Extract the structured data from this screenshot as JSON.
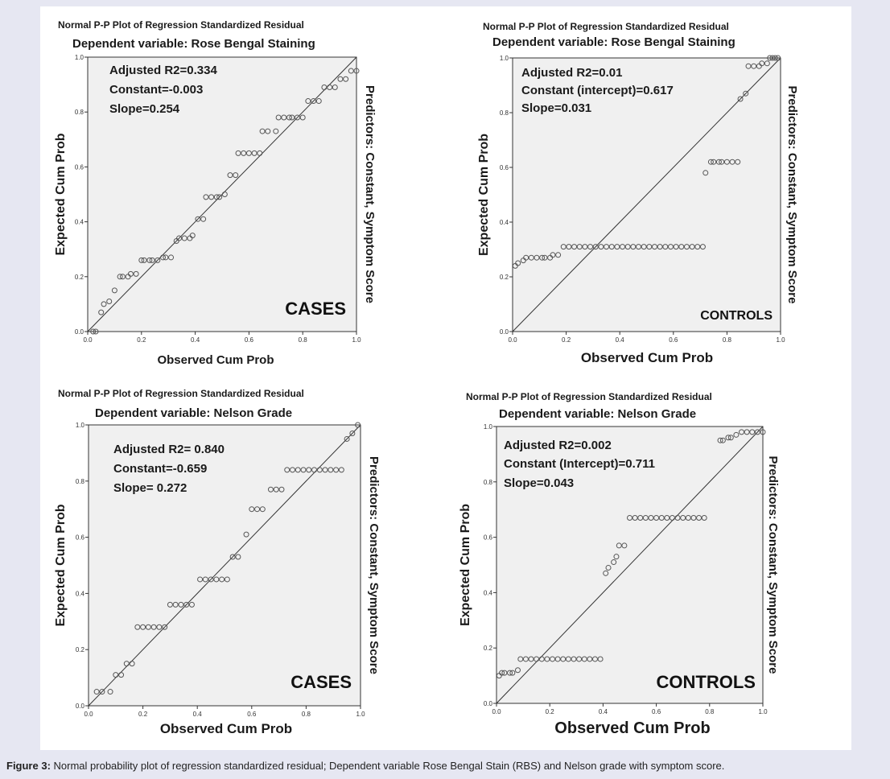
{
  "caption": {
    "label": "Figure 3:",
    "text": "Normal probability plot of regression standardized residual; Dependent variable Rose Bengal Stain (RBS) and Nelson grade with symptom score."
  },
  "colors": {
    "plot_background": "#f0f0f0",
    "page_background": "#e6e7f2",
    "marker": "#555555",
    "reference_line": "#333333"
  },
  "chart_data": [
    {
      "type": "scatter",
      "title": "Normal P-P Plot of Regression Standardized Residual",
      "subtitle": "Dependent variable: Rose Bengal Staining",
      "xlabel": "Observed Cum Prob",
      "ylabel": "Expected Cum Prob",
      "right_label": "Predictors: Constant, Symptom Score",
      "group_label": "CASES",
      "stats": [
        "Adjusted R2=0.334",
        "Constant=-0.003",
        "Slope=0.254"
      ],
      "xlim": [
        0,
        1
      ],
      "ylim": [
        0,
        1
      ],
      "xticks": [
        "0.0",
        "0.2",
        "0.4",
        "0.6",
        "0.8",
        "1.0"
      ],
      "yticks": [
        "0.0",
        "0.2",
        "0.4",
        "0.6",
        "0.8",
        "1.0"
      ],
      "reference_line": "y = x",
      "x": [
        0.02,
        0.03,
        0.05,
        0.06,
        0.08,
        0.1,
        0.12,
        0.13,
        0.15,
        0.16,
        0.18,
        0.2,
        0.21,
        0.23,
        0.24,
        0.26,
        0.28,
        0.29,
        0.31,
        0.33,
        0.34,
        0.36,
        0.38,
        0.39,
        0.41,
        0.43,
        0.44,
        0.46,
        0.48,
        0.49,
        0.51,
        0.53,
        0.55,
        0.56,
        0.58,
        0.6,
        0.62,
        0.64,
        0.65,
        0.67,
        0.7,
        0.71,
        0.73,
        0.75,
        0.76,
        0.78,
        0.8,
        0.82,
        0.84,
        0.86,
        0.88,
        0.9,
        0.92,
        0.94,
        0.96,
        0.98,
        1.0
      ],
      "y": [
        0.0,
        0.0,
        0.07,
        0.1,
        0.11,
        0.15,
        0.2,
        0.2,
        0.2,
        0.21,
        0.21,
        0.26,
        0.26,
        0.26,
        0.26,
        0.26,
        0.27,
        0.27,
        0.27,
        0.33,
        0.34,
        0.34,
        0.34,
        0.35,
        0.41,
        0.41,
        0.49,
        0.49,
        0.49,
        0.49,
        0.5,
        0.57,
        0.57,
        0.65,
        0.65,
        0.65,
        0.65,
        0.65,
        0.73,
        0.73,
        0.73,
        0.78,
        0.78,
        0.78,
        0.78,
        0.78,
        0.78,
        0.84,
        0.84,
        0.84,
        0.89,
        0.89,
        0.89,
        0.92,
        0.92,
        0.95,
        0.95
      ]
    },
    {
      "type": "scatter",
      "title": "Normal P-P Plot of Regression Standardized Residual",
      "subtitle": "Dependent variable: Rose Bengal Staining",
      "xlabel": "Observed Cum Prob",
      "ylabel": "Expected Cum Prob",
      "right_label": "Predictors: Constant, Symptom Score",
      "group_label": "CONTROLS",
      "stats": [
        "Adjusted R2=0.01",
        "Constant (intercept)=0.617",
        "Slope=0.031"
      ],
      "xlim": [
        0,
        1
      ],
      "ylim": [
        0,
        1
      ],
      "xticks": [
        "0.0",
        "0.2",
        "0.4",
        "0.6",
        "0.8",
        "1.0"
      ],
      "yticks": [
        "0.0",
        "0.2",
        "0.4",
        "0.6",
        "0.8",
        "1.0"
      ],
      "reference_line": "y = x",
      "x": [
        0.01,
        0.02,
        0.04,
        0.05,
        0.07,
        0.09,
        0.11,
        0.12,
        0.14,
        0.15,
        0.17,
        0.19,
        0.21,
        0.23,
        0.25,
        0.27,
        0.29,
        0.31,
        0.33,
        0.35,
        0.37,
        0.39,
        0.41,
        0.43,
        0.45,
        0.47,
        0.49,
        0.51,
        0.53,
        0.55,
        0.57,
        0.59,
        0.61,
        0.63,
        0.65,
        0.67,
        0.69,
        0.71,
        0.72,
        0.74,
        0.75,
        0.77,
        0.78,
        0.8,
        0.82,
        0.84,
        0.85,
        0.87,
        0.88,
        0.9,
        0.92,
        0.93,
        0.95,
        0.96,
        0.97,
        0.98,
        0.99
      ],
      "y": [
        0.24,
        0.25,
        0.26,
        0.27,
        0.27,
        0.27,
        0.27,
        0.27,
        0.27,
        0.28,
        0.28,
        0.31,
        0.31,
        0.31,
        0.31,
        0.31,
        0.31,
        0.31,
        0.31,
        0.31,
        0.31,
        0.31,
        0.31,
        0.31,
        0.31,
        0.31,
        0.31,
        0.31,
        0.31,
        0.31,
        0.31,
        0.31,
        0.31,
        0.31,
        0.31,
        0.31,
        0.31,
        0.31,
        0.58,
        0.62,
        0.62,
        0.62,
        0.62,
        0.62,
        0.62,
        0.62,
        0.85,
        0.87,
        0.97,
        0.97,
        0.97,
        0.98,
        0.98,
        1.0,
        1.0,
        1.0,
        1.0
      ]
    },
    {
      "type": "scatter",
      "title": "Normal P-P Plot of Regression Standardized Residual",
      "subtitle": "Dependent variable: Nelson Grade",
      "xlabel": "Observed Cum Prob",
      "ylabel": "Expected Cum Prob",
      "right_label": "Predictors: Constant, Symptom Score",
      "group_label": "CASES",
      "stats": [
        "Adjusted R2= 0.840",
        "Constant=-0.659",
        "Slope= 0.272"
      ],
      "xlim": [
        0,
        1
      ],
      "ylim": [
        0,
        1
      ],
      "xticks": [
        "0.0",
        "0.2",
        "0.4",
        "0.6",
        "0.8",
        "1.0"
      ],
      "yticks": [
        "0.0",
        "0.2",
        "0.4",
        "0.6",
        "0.8",
        "1.0"
      ],
      "reference_line": "y = x",
      "x": [
        0.03,
        0.05,
        0.08,
        0.1,
        0.12,
        0.14,
        0.16,
        0.18,
        0.2,
        0.22,
        0.24,
        0.26,
        0.28,
        0.3,
        0.32,
        0.34,
        0.36,
        0.38,
        0.41,
        0.43,
        0.45,
        0.47,
        0.49,
        0.51,
        0.53,
        0.55,
        0.58,
        0.6,
        0.62,
        0.64,
        0.67,
        0.69,
        0.71,
        0.73,
        0.75,
        0.77,
        0.79,
        0.81,
        0.83,
        0.85,
        0.87,
        0.89,
        0.91,
        0.93,
        0.95,
        0.97,
        0.99
      ],
      "y": [
        0.05,
        0.05,
        0.05,
        0.11,
        0.11,
        0.15,
        0.15,
        0.28,
        0.28,
        0.28,
        0.28,
        0.28,
        0.28,
        0.36,
        0.36,
        0.36,
        0.36,
        0.36,
        0.45,
        0.45,
        0.45,
        0.45,
        0.45,
        0.45,
        0.53,
        0.53,
        0.61,
        0.7,
        0.7,
        0.7,
        0.77,
        0.77,
        0.77,
        0.84,
        0.84,
        0.84,
        0.84,
        0.84,
        0.84,
        0.84,
        0.84,
        0.84,
        0.84,
        0.84,
        0.95,
        0.97,
        1.0
      ]
    },
    {
      "type": "scatter",
      "title": "Normal P-P Plot of Regression Standardized Residual",
      "subtitle": "Dependent variable: Nelson Grade",
      "xlabel": "Observed Cum Prob",
      "ylabel": "Expected Cum Prob",
      "right_label": "Predictors: Constant, Symptom Score",
      "group_label": "CONTROLS",
      "stats": [
        "Adjusted R2=0.002",
        "Constant (Intercept)=0.711",
        "Slope=0.043"
      ],
      "xlim": [
        0,
        1
      ],
      "ylim": [
        0,
        1
      ],
      "xticks": [
        "0.0",
        "0.2",
        "0.4",
        "0.6",
        "0.8",
        "1.0"
      ],
      "yticks": [
        "0.0",
        "0.2",
        "0.4",
        "0.6",
        "0.8",
        "1.0"
      ],
      "reference_line": "y = x",
      "x": [
        0.01,
        0.02,
        0.03,
        0.05,
        0.06,
        0.08,
        0.09,
        0.11,
        0.13,
        0.15,
        0.17,
        0.19,
        0.21,
        0.23,
        0.25,
        0.27,
        0.29,
        0.31,
        0.33,
        0.35,
        0.37,
        0.39,
        0.41,
        0.42,
        0.44,
        0.45,
        0.46,
        0.48,
        0.5,
        0.52,
        0.54,
        0.56,
        0.58,
        0.6,
        0.62,
        0.64,
        0.66,
        0.68,
        0.7,
        0.72,
        0.74,
        0.76,
        0.78,
        0.84,
        0.85,
        0.87,
        0.88,
        0.9,
        0.92,
        0.94,
        0.96,
        0.98,
        1.0
      ],
      "y": [
        0.1,
        0.11,
        0.11,
        0.11,
        0.11,
        0.12,
        0.16,
        0.16,
        0.16,
        0.16,
        0.16,
        0.16,
        0.16,
        0.16,
        0.16,
        0.16,
        0.16,
        0.16,
        0.16,
        0.16,
        0.16,
        0.16,
        0.47,
        0.49,
        0.51,
        0.53,
        0.57,
        0.57,
        0.67,
        0.67,
        0.67,
        0.67,
        0.67,
        0.67,
        0.67,
        0.67,
        0.67,
        0.67,
        0.67,
        0.67,
        0.67,
        0.67,
        0.67,
        0.95,
        0.95,
        0.96,
        0.96,
        0.97,
        0.98,
        0.98,
        0.98,
        0.98,
        0.98
      ]
    }
  ]
}
